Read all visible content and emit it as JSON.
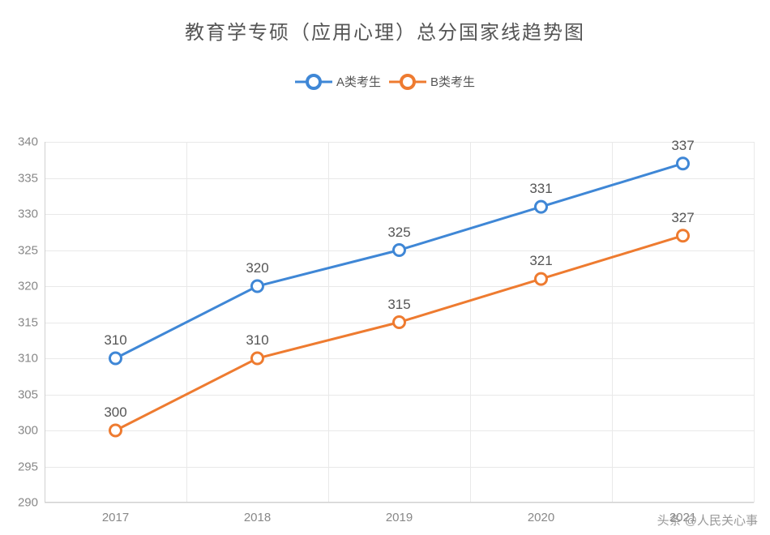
{
  "chart": {
    "type": "line",
    "title": "教育学专硕（应用心理）总分国家线趋势图",
    "title_fontsize": 24,
    "title_color": "#555555",
    "background_color": "#ffffff",
    "grid_color": "#e9e9e9",
    "axis_color": "#d0d0d0",
    "tick_label_color": "#888888",
    "tick_fontsize": 15,
    "data_label_color": "#555555",
    "data_label_fontsize": 17,
    "legend_fontsize": 15,
    "categories": [
      "2017",
      "2018",
      "2019",
      "2020",
      "2021"
    ],
    "ylim": [
      290,
      340
    ],
    "ytick_step": 5,
    "line_width": 3,
    "marker_radius_outer": 7,
    "marker_radius_inner": 3.5,
    "marker_stroke_width": 3,
    "legend_marker_outer": 8,
    "legend_marker_stroke": 4,
    "series": [
      {
        "name": "A类考生",
        "color": "#3f87d6",
        "values": [
          310,
          320,
          325,
          331,
          337
        ]
      },
      {
        "name": "B类考生",
        "color": "#ee7b30",
        "values": [
          300,
          310,
          315,
          321,
          327
        ]
      }
    ]
  },
  "watermark": "头条 @人民关心事"
}
